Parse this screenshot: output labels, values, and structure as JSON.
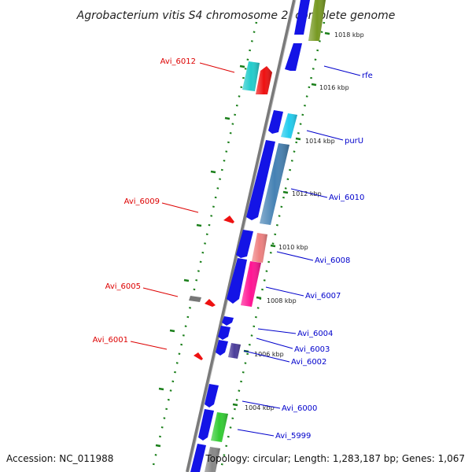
{
  "title": "Agrobacterium vitis S4 chromosome 2, complete genome",
  "footer": {
    "accession": "Accession: NC_011988",
    "summary": "Topology: circular; Length: 1,283,187 bp; Genes: 1,067"
  },
  "colors": {
    "backbone": "#7a7a7a",
    "forward_gene": "#1414e6",
    "reverse_label": "#dd0000",
    "forward_label": "#0000cc",
    "tick": "#1a7f1a",
    "cyan_gene": "#22cccc",
    "red_gene": "#ee1111",
    "olive_gene": "#779922",
    "steel_gene": "#4682b4",
    "salmon_gene": "#ee8080",
    "pink_gene": "#ff1493",
    "purple_gene": "#4b3d9a",
    "green_gene": "#33cc33",
    "gray_gene": "#777777"
  },
  "kbp_labels": [
    "1018 kbp",
    "1016 kbp",
    "1014 kbp",
    "1012 kbp",
    "1010 kbp",
    "1008 kbp",
    "1006 kbp",
    "1004 kbp"
  ],
  "reverse_labels": [
    "Avi_6012",
    "Avi_6009",
    "Avi_6005",
    "Avi_6001"
  ],
  "forward_labels": [
    "rfe",
    "purU",
    "Avi_6010",
    "Avi_6008",
    "Avi_6007",
    "Avi_6004",
    "Avi_6003",
    "Avi_6002",
    "Avi_6000",
    "Avi_5999"
  ]
}
